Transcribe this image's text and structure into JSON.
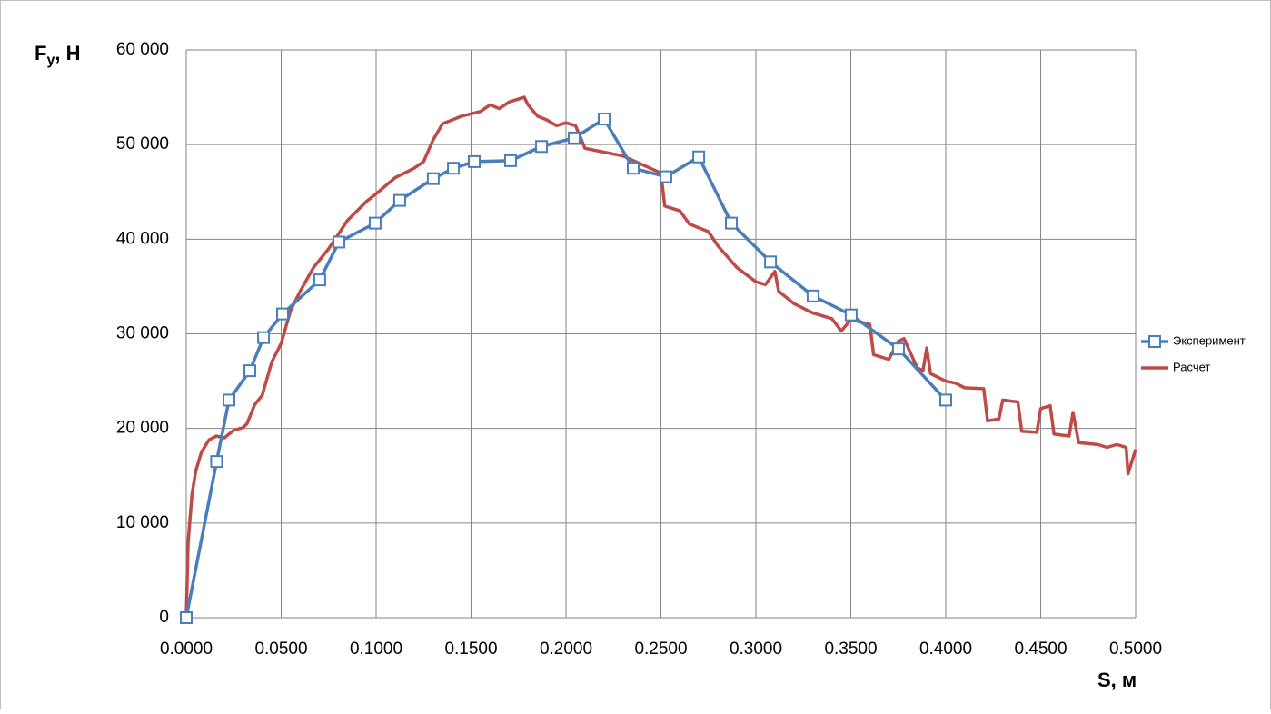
{
  "chart_data": {
    "type": "line",
    "y_label": {
      "text": "F",
      "subscript": "y",
      "suffix": ", H"
    },
    "x_label": "S, м",
    "xlim": [
      0,
      0.5
    ],
    "xticks": [
      {
        "value": 0,
        "label": "0.0000"
      },
      {
        "value": 0.05,
        "label": "0.0500"
      },
      {
        "value": 0.1,
        "label": "0.1000"
      },
      {
        "value": 0.15,
        "label": "0.1500"
      },
      {
        "value": 0.2,
        "label": "0.2000"
      },
      {
        "value": 0.25,
        "label": "0.2500"
      },
      {
        "value": 0.3,
        "label": "0.3000"
      },
      {
        "value": 0.35,
        "label": "0.3500"
      },
      {
        "value": 0.4,
        "label": "0.4000"
      },
      {
        "value": 0.45,
        "label": "0.4500"
      },
      {
        "value": 0.5,
        "label": "0.5000"
      }
    ],
    "ylim": [
      0,
      60000
    ],
    "yticks": [
      0,
      {
        "value": 10000,
        "label": "10 000"
      },
      {
        "value": 20000,
        "label": "20 000"
      },
      {
        "value": 30000,
        "label": "30 000"
      },
      {
        "value": 40000,
        "label": "40 000"
      },
      {
        "value": 50000,
        "label": "50 000"
      },
      {
        "value": 60000,
        "label": "60 000"
      }
    ],
    "grid": true,
    "legend": "right",
    "series": [
      {
        "name": "Эксперимент",
        "color": "#4a7ebb",
        "marker": "square",
        "x": [
          0,
          0.016,
          0.0225,
          0.0335,
          0.0407,
          0.0507,
          0.0703,
          0.0804,
          0.0995,
          0.1124,
          0.1301,
          0.1407,
          0.1517,
          0.1708,
          0.1871,
          0.2043,
          0.2201,
          0.2354,
          0.2526,
          0.2699,
          0.2871,
          0.3077,
          0.3301,
          0.3502,
          0.3751,
          0.4
        ],
        "values": [
          0,
          16500,
          23000,
          26100,
          29600,
          32100,
          35700,
          39700,
          41700,
          44100,
          46400,
          47500,
          48200,
          48300,
          49800,
          50700,
          52700,
          47500,
          46600,
          48700,
          41700,
          37600,
          34000,
          32000,
          28400,
          23000
        ]
      },
      {
        "name": "Расчет",
        "color": "#be4b48",
        "marker": "none",
        "x": [
          0,
          0.001,
          0.003,
          0.005,
          0.008,
          0.012,
          0.016,
          0.02,
          0.025,
          0.03,
          0.032,
          0.036,
          0.04,
          0.045,
          0.05,
          0.055,
          0.06,
          0.067,
          0.075,
          0.085,
          0.095,
          0.1,
          0.11,
          0.12,
          0.125,
          0.13,
          0.135,
          0.145,
          0.155,
          0.16,
          0.165,
          0.17,
          0.178,
          0.18,
          0.185,
          0.19,
          0.195,
          0.2,
          0.205,
          0.21,
          0.22,
          0.23,
          0.24,
          0.25,
          0.252,
          0.26,
          0.265,
          0.275,
          0.28,
          0.29,
          0.3,
          0.305,
          0.31,
          0.312,
          0.32,
          0.33,
          0.34,
          0.345,
          0.35,
          0.36,
          0.362,
          0.37,
          0.375,
          0.378,
          0.385,
          0.388,
          0.39,
          0.392,
          0.4,
          0.405,
          0.41,
          0.42,
          0.422,
          0.428,
          0.43,
          0.438,
          0.44,
          0.448,
          0.45,
          0.455,
          0.457,
          0.465,
          0.467,
          0.47,
          0.48,
          0.485,
          0.49,
          0.495,
          0.496,
          0.5
        ],
        "values": [
          0,
          8000,
          13000,
          15500,
          17500,
          18800,
          19200,
          19000,
          19800,
          20100,
          20500,
          22500,
          23500,
          27000,
          29000,
          32500,
          34500,
          37000,
          39000,
          42000,
          44000,
          44800,
          46500,
          47500,
          48200,
          50500,
          52200,
          53000,
          53500,
          54200,
          53800,
          54500,
          55000,
          54200,
          53000,
          52600,
          52000,
          52300,
          52000,
          49600,
          49200,
          48800,
          47900,
          47000,
          43500,
          43000,
          41600,
          40800,
          39300,
          37000,
          35500,
          35200,
          36600,
          34500,
          33200,
          32200,
          31600,
          30300,
          31500,
          31000,
          27800,
          27300,
          29200,
          29500,
          26400,
          26100,
          28500,
          25800,
          25000,
          24800,
          24300,
          24200,
          20800,
          21000,
          23000,
          22800,
          19700,
          19600,
          22100,
          22400,
          19400,
          19200,
          21700,
          18500,
          18300,
          18000,
          18300,
          18000,
          15200,
          17800
        ]
      }
    ]
  }
}
